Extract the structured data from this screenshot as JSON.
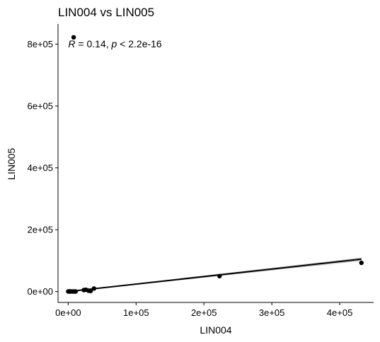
{
  "chart_data": {
    "type": "scatter",
    "title": "LIN004 vs LIN005",
    "xlabel": "LIN004",
    "ylabel": "LIN005",
    "xlim": [
      -15000,
      450000
    ],
    "ylim": [
      -35000,
      865000
    ],
    "x_ticks": [
      {
        "value": 0,
        "label": "0e+00"
      },
      {
        "value": 100000,
        "label": "1e+05"
      },
      {
        "value": 200000,
        "label": "2e+05"
      },
      {
        "value": 300000,
        "label": "3e+05"
      },
      {
        "value": 400000,
        "label": "4e+05"
      }
    ],
    "y_ticks": [
      {
        "value": 0,
        "label": "0e+00"
      },
      {
        "value": 200000,
        "label": "2e+05"
      },
      {
        "value": 400000,
        "label": "4e+05"
      },
      {
        "value": 600000,
        "label": "6e+05"
      },
      {
        "value": 800000,
        "label": "8e+05"
      }
    ],
    "points": [
      {
        "x": 8000,
        "y": 822000
      },
      {
        "x": 0,
        "y": 500
      },
      {
        "x": 1000,
        "y": 300
      },
      {
        "x": 2000,
        "y": 800
      },
      {
        "x": 3000,
        "y": 200
      },
      {
        "x": 4500,
        "y": 600
      },
      {
        "x": 6000,
        "y": 300
      },
      {
        "x": 7500,
        "y": 500
      },
      {
        "x": 9000,
        "y": 200
      },
      {
        "x": 11000,
        "y": 400
      },
      {
        "x": 23000,
        "y": 5000
      },
      {
        "x": 26000,
        "y": 6000
      },
      {
        "x": 30000,
        "y": 3000
      },
      {
        "x": 33000,
        "y": 2000
      },
      {
        "x": 38000,
        "y": 10000
      },
      {
        "x": 223000,
        "y": 50000
      },
      {
        "x": 432000,
        "y": 93000
      }
    ],
    "fit_line": {
      "x": [
        0,
        432000
      ],
      "y": [
        0,
        105000
      ]
    },
    "fit_band": {
      "x": [
        0,
        432000
      ],
      "y_upper": [
        1500,
        110000
      ],
      "y_lower": [
        -1500,
        99000
      ]
    },
    "annotation": {
      "r_symbol": "R",
      "r_text": " = 0.14, ",
      "p_symbol": "p",
      "p_text": " < 2.2e-16",
      "x": 0,
      "y": 790000
    },
    "grid": false,
    "legend": "none",
    "colors": {
      "points": "#000000",
      "line": "#000000",
      "band": "#999999"
    }
  }
}
